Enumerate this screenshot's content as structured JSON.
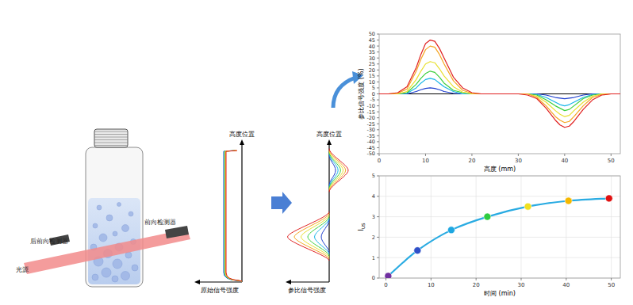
{
  "diagram": {
    "labels": {
      "back_detector": "后前向检测器",
      "front_detector": "前向检测器",
      "light_source": "光源"
    },
    "profiles": [
      {
        "y_axis": "高度位置",
        "x_axis": "原始信号强度"
      },
      {
        "y_axis": "高度位置",
        "x_axis": "参比信号强度"
      }
    ]
  },
  "chart_data": [
    {
      "type": "line",
      "x_label": "高度 (mm)",
      "y_label": "参比信号强度 (%)",
      "x": [
        0,
        2,
        4,
        6,
        8,
        9,
        10,
        11,
        12,
        13,
        14,
        16,
        18,
        20,
        22,
        24,
        26,
        28,
        30,
        32,
        34,
        36,
        38,
        39,
        40,
        41,
        42,
        44,
        46,
        48,
        50,
        52
      ],
      "xlim": [
        0,
        52
      ],
      "xticks": [
        0,
        10,
        20,
        30,
        40,
        50
      ],
      "ylim": [
        -50,
        50
      ],
      "yticks": [
        -50,
        -45,
        -40,
        -35,
        -30,
        -25,
        -20,
        -15,
        -10,
        -5,
        0,
        5,
        10,
        15,
        20,
        25,
        30,
        35,
        40,
        45,
        50
      ],
      "grid": false,
      "series": [
        {
          "color": "#000000",
          "values": [
            0,
            0,
            0,
            0,
            0,
            0,
            0,
            0,
            0,
            0,
            0,
            0,
            0,
            0,
            0,
            0,
            0,
            0,
            0,
            0,
            0,
            0,
            0,
            0,
            0,
            0,
            0,
            0,
            0,
            0,
            0,
            0
          ]
        },
        {
          "color": "#1f3fcf",
          "values": [
            0,
            0,
            0,
            0,
            2,
            3.5,
            4.5,
            5,
            4.5,
            3.5,
            2,
            0.5,
            0,
            0,
            0,
            0,
            0,
            0,
            0,
            0,
            0,
            -1,
            -3,
            -3.5,
            -4,
            -3.5,
            -3,
            -1,
            0,
            0,
            0,
            0
          ]
        },
        {
          "color": "#19b5e8",
          "values": [
            0,
            0,
            0,
            0.5,
            5,
            9,
            12,
            13,
            12,
            9,
            6,
            2,
            0,
            0,
            0,
            0,
            0,
            0,
            0,
            0,
            -0.5,
            -3,
            -7,
            -9,
            -10,
            -9,
            -7,
            -3,
            -0.5,
            0,
            0,
            0
          ]
        },
        {
          "color": "#3ccf3c",
          "values": [
            0,
            0,
            0,
            1,
            8,
            13,
            17,
            19,
            18,
            14,
            9,
            3,
            1,
            0,
            0,
            0,
            0,
            0,
            0,
            0,
            -1,
            -5,
            -10,
            -12,
            -14,
            -13,
            -10,
            -4,
            -1,
            0,
            0,
            0
          ]
        },
        {
          "color": "#e8e030",
          "values": [
            0,
            0,
            0,
            2,
            12,
            19,
            25,
            27,
            26,
            21,
            15,
            6,
            1.5,
            0,
            0,
            0,
            0,
            0,
            0,
            0,
            -2,
            -7,
            -14,
            -17,
            -19,
            -18,
            -14,
            -7,
            -2,
            0,
            0,
            0
          ]
        },
        {
          "color": "#f5a623",
          "values": [
            0,
            0,
            0.5,
            4,
            19,
            29,
            37,
            40,
            39,
            33,
            25,
            11,
            3,
            0.5,
            0,
            0,
            0,
            0,
            0,
            0,
            -3,
            -10,
            -19,
            -22,
            -24,
            -23,
            -19,
            -10,
            -3,
            -0.5,
            0,
            0
          ]
        },
        {
          "color": "#e02020",
          "values": [
            0,
            0,
            1,
            6,
            22,
            33,
            42,
            45,
            44,
            38,
            30,
            14,
            5,
            1,
            0,
            0,
            0,
            0,
            0,
            -1,
            -4,
            -12,
            -22,
            -26,
            -28,
            -27,
            -23,
            -13,
            -5,
            -1,
            0,
            0
          ]
        }
      ]
    },
    {
      "type": "line",
      "x_label": "时间 (min)",
      "y_label": "I",
      "y_label_subscript": "US",
      "x": [
        0.5,
        7,
        14.5,
        22.5,
        31.5,
        40.5,
        49.5
      ],
      "xlim": [
        -1.5,
        52
      ],
      "xticks": [
        0,
        10,
        20,
        30,
        40,
        50
      ],
      "ylim": [
        0,
        5
      ],
      "yticks": [
        0,
        1,
        2,
        3,
        4,
        5
      ],
      "grid": true,
      "series": [
        {
          "color": "#29abe2",
          "marker": "circle",
          "colors": [
            "#7030a0",
            "#2e4fc8",
            "#1ea7e1",
            "#2ecc40",
            "#f0e020",
            "#f5b800",
            "#e01010"
          ],
          "values": [
            0.1,
            1.35,
            2.35,
            3.0,
            3.5,
            3.78,
            3.9
          ]
        }
      ]
    }
  ]
}
